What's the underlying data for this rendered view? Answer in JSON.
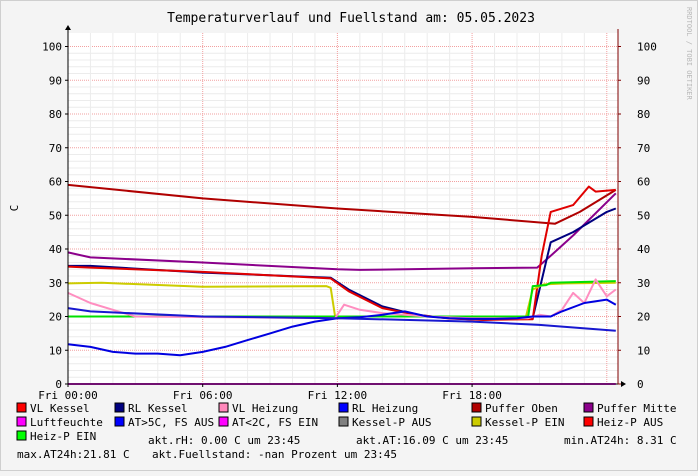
{
  "chart_data": {
    "type": "line",
    "title": "Temperaturverlauf und Fuellstand am: 05.05.2023",
    "ylabel": "C",
    "watermark": "RRDTOOL / TOBI OETIKER",
    "ylim": [
      0,
      104
    ],
    "xlim": [
      0,
      24.5
    ],
    "yticks": [
      0,
      10,
      20,
      30,
      40,
      50,
      60,
      70,
      80,
      90,
      100
    ],
    "xticks": [
      {
        "x": 0,
        "label": "Fri 00:00"
      },
      {
        "x": 6,
        "label": "Fri 06:00"
      },
      {
        "x": 12,
        "label": "Fri 12:00"
      },
      {
        "x": 18,
        "label": "Fri 18:00"
      }
    ],
    "grid": true,
    "series": [
      {
        "name": "Puffer Oben",
        "color": "#b00000",
        "x": [
          0,
          6,
          12,
          18,
          21.7,
          22.8,
          24.4
        ],
        "y": [
          59,
          55,
          52,
          49.5,
          47.5,
          51,
          57.5
        ]
      },
      {
        "name": "Puffer Mitte",
        "color": "#8b008b",
        "x": [
          0,
          1,
          6,
          12,
          13,
          18,
          20.9,
          21.5,
          22.5,
          24.4
        ],
        "y": [
          39,
          37.5,
          36,
          34,
          33.8,
          34.3,
          34.5,
          38,
          44,
          56.5
        ]
      },
      {
        "name": "RL Kessel",
        "color": "#000080",
        "x": [
          0,
          1,
          6,
          11.7,
          12.5,
          14,
          15.5,
          17,
          18.5,
          20.7,
          21.5,
          22.5,
          23.5,
          24,
          24.4
        ],
        "y": [
          35,
          35,
          33,
          31.5,
          28,
          23,
          20.5,
          19.5,
          19,
          19.5,
          42,
          45,
          49,
          51,
          52
        ]
      },
      {
        "name": "VL Kessel",
        "color": "#e00000",
        "x": [
          0,
          1,
          6,
          11.7,
          12.5,
          14,
          15.5,
          17,
          18.5,
          20.7,
          21.1,
          21.5,
          22.5,
          23.2,
          23.5,
          24.4
        ],
        "y": [
          34.8,
          34.5,
          33.2,
          31.3,
          27.5,
          22.5,
          20.5,
          19.4,
          19,
          19.2,
          38,
          51,
          53,
          58.5,
          57,
          57.5
        ]
      },
      {
        "name": "Kessel-P EIN",
        "color": "#cccc00",
        "x": [
          0,
          1.5,
          6,
          11.5,
          11.7,
          11.9,
          20.4,
          20.7,
          21.2,
          22.2,
          24.4
        ],
        "y": [
          29.8,
          30,
          28.8,
          29,
          28.5,
          20,
          20,
          28,
          29.5,
          29.8,
          30
        ]
      },
      {
        "name": "Heiz-P EIN",
        "color": "#00e000",
        "x": [
          0,
          20.5,
          20.7,
          21.3,
          21.5,
          24.4
        ],
        "y": [
          20,
          20,
          29,
          29.3,
          30,
          30.5
        ]
      },
      {
        "name": "VL Heizung",
        "color": "#ff8ec0",
        "x": [
          0,
          1,
          2,
          3,
          11.9,
          12.3,
          13,
          14,
          15,
          16,
          18,
          20.5,
          21,
          21.5,
          22,
          22.5,
          23,
          23.5,
          24,
          24.4
        ],
        "y": [
          27,
          24,
          22,
          20,
          19.5,
          23.5,
          22,
          21,
          20.5,
          20,
          19.5,
          19.5,
          20.5,
          20,
          22,
          27,
          24,
          31,
          26,
          28
        ]
      },
      {
        "name": "AT>5C, FS AUS",
        "color": "#0000e0",
        "x": [
          0,
          1,
          2,
          3,
          4,
          5,
          6,
          7,
          8,
          9,
          10,
          11,
          12,
          13,
          14,
          15,
          16,
          17,
          18,
          19,
          20,
          20.7,
          21.5,
          22,
          23,
          24,
          24.4
        ],
        "y": [
          11.8,
          11,
          9.5,
          9,
          9,
          8.5,
          9.5,
          11,
          13,
          15,
          17,
          18.5,
          19.5,
          19.8,
          20.5,
          21.5,
          20,
          19.5,
          19.3,
          19.3,
          19.5,
          20,
          20,
          21.5,
          24,
          25,
          23.5
        ]
      },
      {
        "name": "RL Heizung",
        "color": "#1818d0",
        "x": [
          0,
          1,
          6,
          12,
          18,
          21,
          24.4
        ],
        "y": [
          22.5,
          21.5,
          20,
          19.5,
          18.5,
          17.5,
          15.8
        ]
      },
      {
        "name": "Luftfeuchte",
        "color": "#e020e0",
        "x": [
          0,
          24.4
        ],
        "y": [
          0,
          0
        ]
      }
    ]
  },
  "legend": {
    "rows": [
      [
        {
          "label": "VL Kessel",
          "color": "#ff0000"
        },
        {
          "label": "RL Kessel",
          "color": "#000080"
        },
        {
          "label": "VL Heizung",
          "color": "#ff88bb"
        },
        {
          "label": "RL Heizung",
          "color": "#0000ff"
        },
        {
          "label": "Puffer Oben",
          "color": "#b00000"
        },
        {
          "label": "Puffer Mitte",
          "color": "#8b008b"
        }
      ],
      [
        {
          "label": "Luftfeuchte",
          "color": "#ff00ff"
        },
        {
          "label": "AT>5C, FS AUS",
          "color": "#0000ff"
        },
        {
          "label": "AT<2C, FS EIN",
          "color": "#ff00ff"
        },
        {
          "label": "Kessel-P AUS",
          "color": "#808080"
        },
        {
          "label": "Kessel-P EIN",
          "color": "#cccc00"
        },
        {
          "label": "Heiz-P AUS",
          "color": "#ff0000"
        }
      ],
      [
        {
          "label": "Heiz-P EIN",
          "color": "#00ff00"
        }
      ]
    ]
  },
  "stats": {
    "rh": "akt.rH: 0.00 C um 23:45",
    "at": "akt.AT:16.09 C um 23:45",
    "min_at": "min.AT24h: 8.31 C",
    "max_at": "max.AT24h:21.81 C",
    "fuellstand": "akt.Fuellstand: -nan Prozent um 23:45"
  }
}
